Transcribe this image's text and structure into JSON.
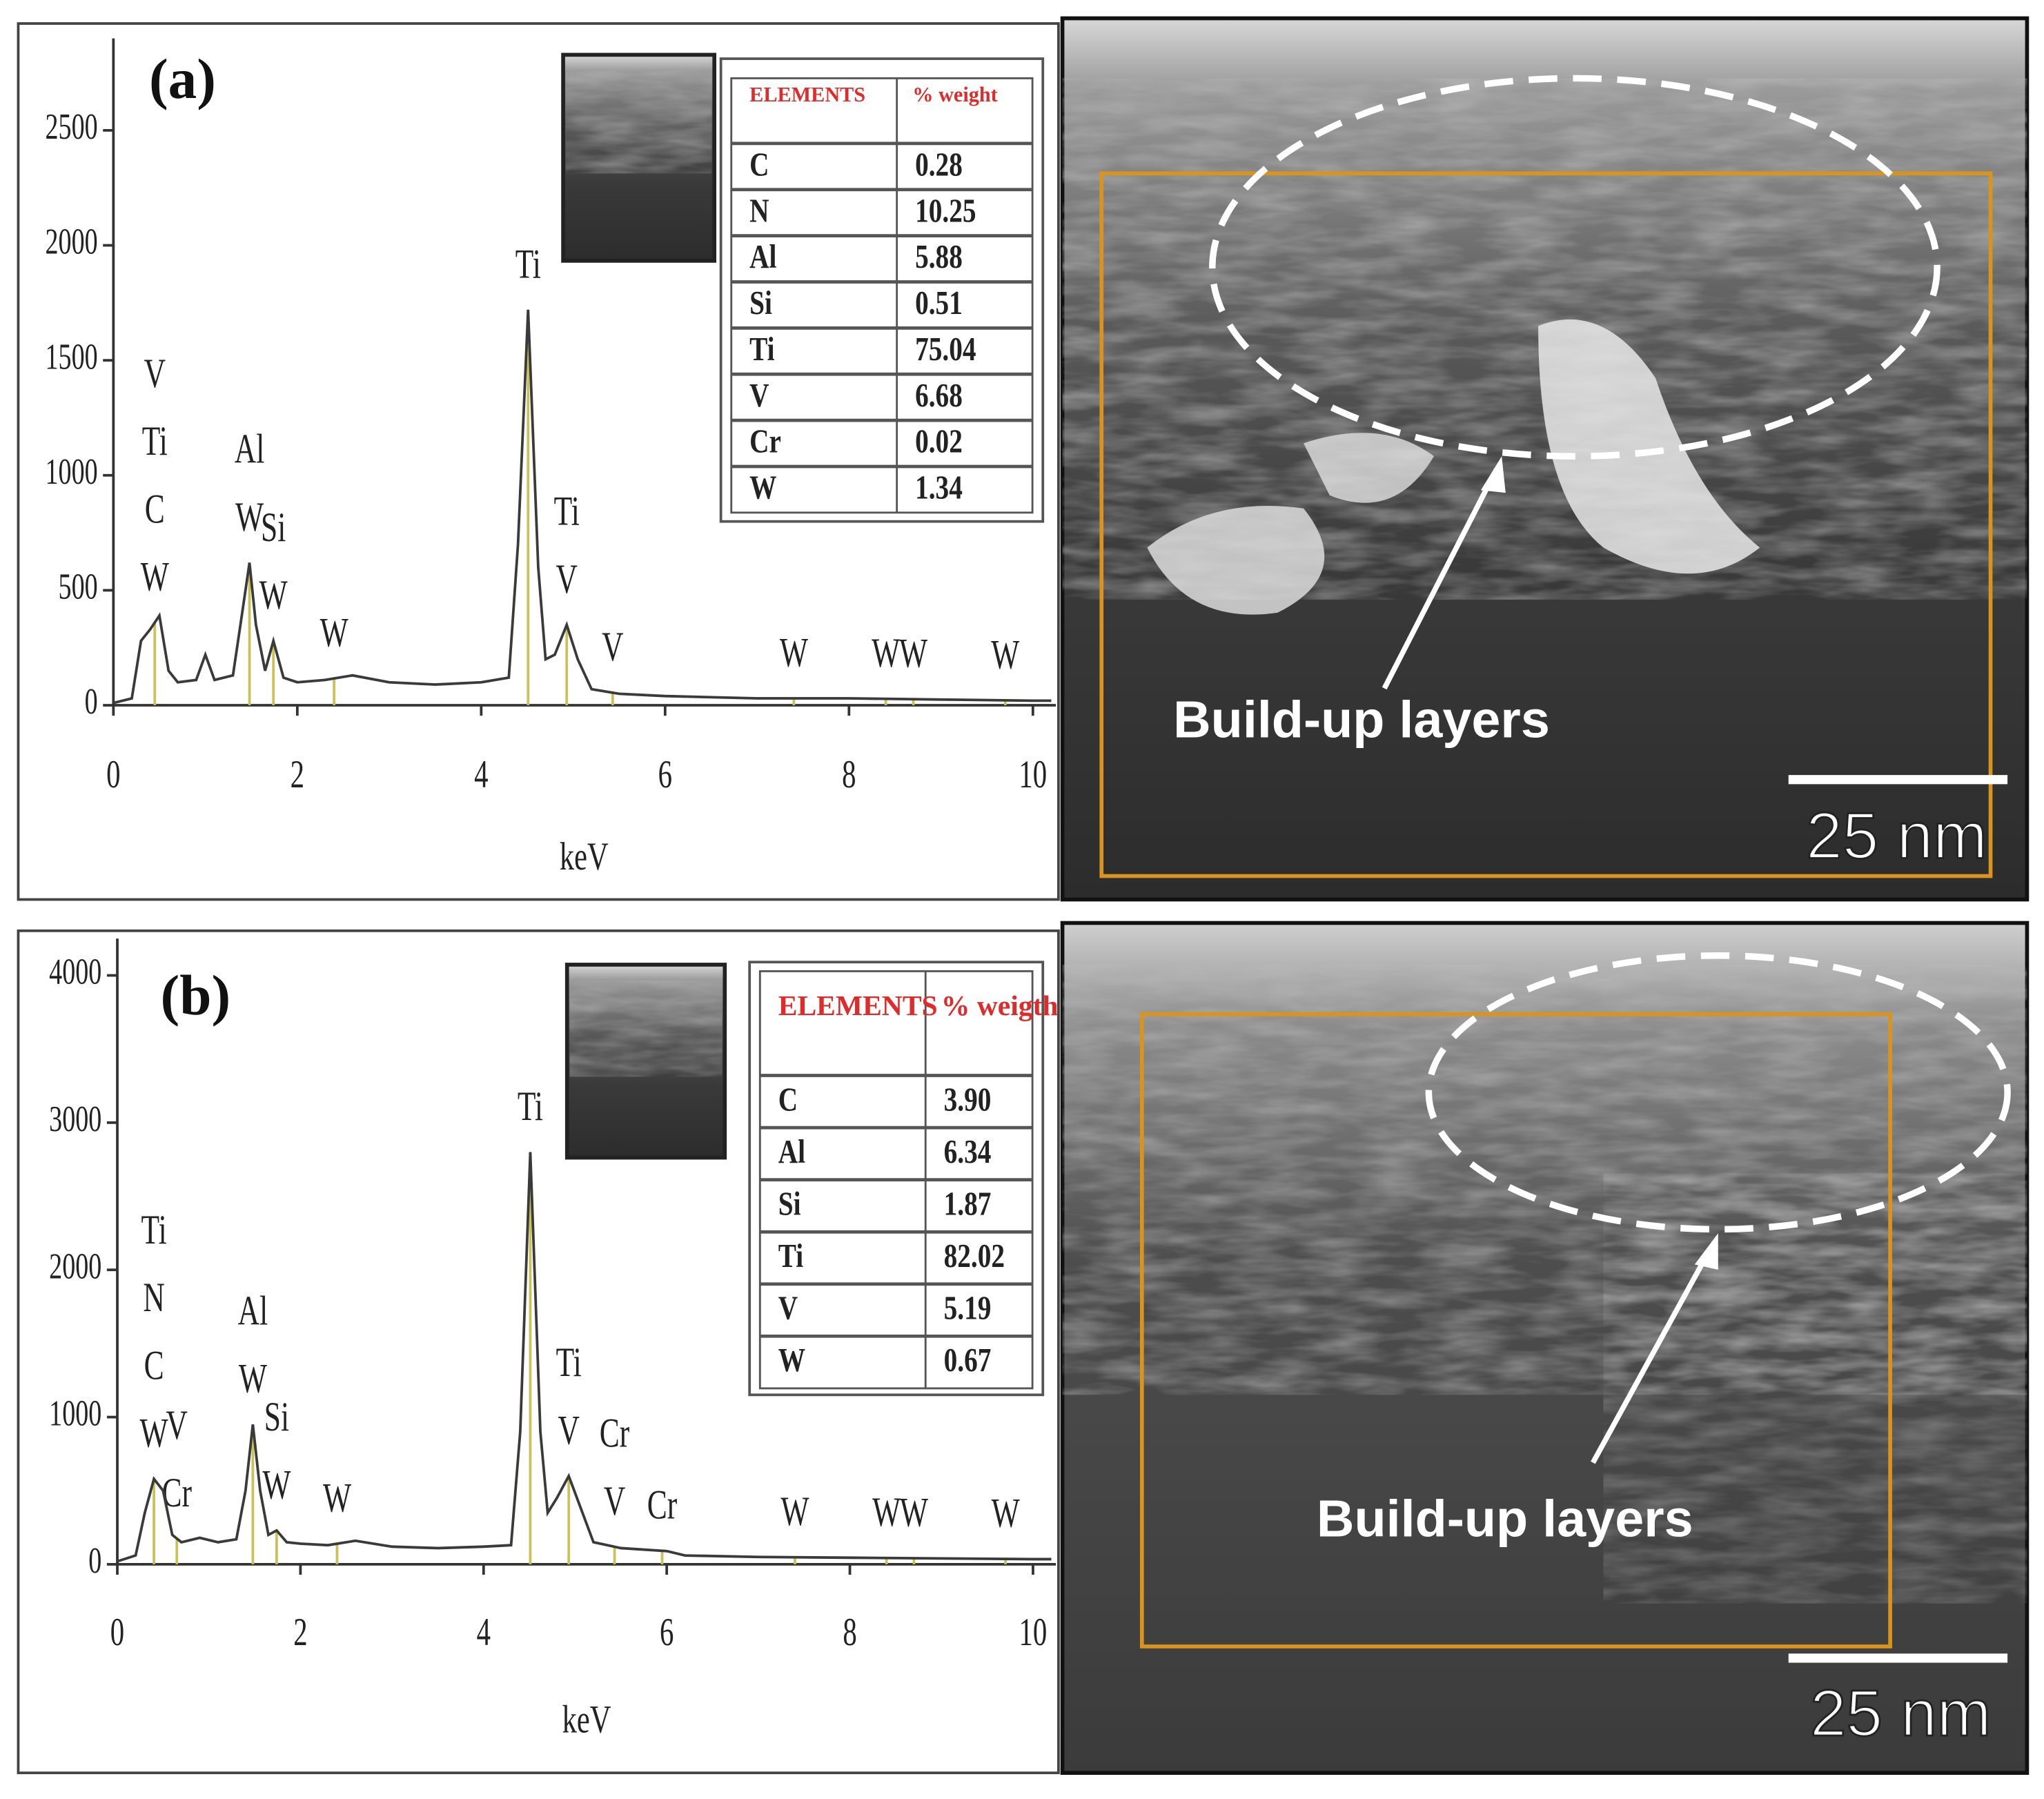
{
  "chart_data": [
    {
      "type": "line",
      "panel_label": "(a)",
      "x_label": "keV",
      "color": "#3a3a3a",
      "peak_line_color": "#c9c25a",
      "x": [
        0,
        0.2,
        0.3,
        0.4,
        0.5,
        0.6,
        0.7,
        0.9,
        1.0,
        1.1,
        1.3,
        1.4,
        1.48,
        1.55,
        1.65,
        1.74,
        1.85,
        2.0,
        2.3,
        2.6,
        3.0,
        3.5,
        4.0,
        4.3,
        4.4,
        4.51,
        4.62,
        4.7,
        4.8,
        4.93,
        5.05,
        5.2,
        5.5,
        6,
        7,
        8,
        9,
        10,
        10.2
      ],
      "values": [
        10,
        30,
        280,
        330,
        390,
        150,
        100,
        110,
        220,
        110,
        130,
        400,
        620,
        350,
        150,
        280,
        120,
        100,
        110,
        130,
        100,
        90,
        100,
        120,
        700,
        1720,
        600,
        200,
        220,
        350,
        200,
        70,
        50,
        40,
        30,
        30,
        25,
        20,
        20
      ],
      "xlim": [
        0,
        10.25
      ],
      "xticks": [
        0,
        2,
        4,
        6,
        8,
        10
      ],
      "ylim": [
        0,
        2900
      ],
      "yticks": [
        0,
        500,
        1000,
        1500,
        2000,
        2500
      ],
      "annotations": [
        {
          "x": 0.45,
          "labels": [
            "W",
            "C",
            "Ti",
            "V"
          ]
        },
        {
          "x": 1.48,
          "labels": [
            "W",
            "Al"
          ]
        },
        {
          "x": 1.74,
          "labels": [
            "W",
            "Si"
          ]
        },
        {
          "x": 2.4,
          "labels": [
            "W"
          ]
        },
        {
          "x": 4.51,
          "labels": [
            "Ti"
          ]
        },
        {
          "x": 4.93,
          "labels": [
            "V",
            "Ti"
          ]
        },
        {
          "x": 5.43,
          "labels": [
            "V"
          ]
        },
        {
          "x": 7.4,
          "labels": [
            "W"
          ]
        },
        {
          "x": 8.4,
          "labels": [
            "W"
          ]
        },
        {
          "x": 8.7,
          "labels": [
            "W"
          ]
        },
        {
          "x": 9.7,
          "labels": [
            "W"
          ]
        }
      ],
      "table": {
        "header": [
          "ELEMENTS",
          "% weight"
        ],
        "rows": [
          [
            "C",
            "0.28"
          ],
          [
            "N",
            "10.25"
          ],
          [
            "Al",
            "5.88"
          ],
          [
            "Si",
            "0.51"
          ],
          [
            "Ti",
            "75.04"
          ],
          [
            "V",
            "6.68"
          ],
          [
            "Cr",
            "0.02"
          ],
          [
            "W",
            "1.34"
          ]
        ]
      }
    },
    {
      "type": "line",
      "panel_label": "(b)",
      "x_label": "keV",
      "color": "#3a3a3a",
      "peak_line_color": "#c9c25a",
      "x": [
        0,
        0.2,
        0.3,
        0.4,
        0.5,
        0.6,
        0.7,
        0.9,
        1.1,
        1.3,
        1.4,
        1.48,
        1.56,
        1.65,
        1.74,
        1.85,
        2.0,
        2.3,
        2.6,
        3.0,
        3.5,
        4.0,
        4.3,
        4.4,
        4.51,
        4.62,
        4.7,
        4.8,
        4.93,
        5.05,
        5.2,
        5.5,
        6,
        6.2,
        7,
        8,
        9,
        10,
        10.2
      ],
      "values": [
        20,
        60,
        350,
        580,
        500,
        200,
        150,
        180,
        150,
        170,
        500,
        950,
        500,
        200,
        230,
        150,
        140,
        130,
        160,
        120,
        110,
        120,
        130,
        900,
        2800,
        900,
        350,
        450,
        600,
        400,
        150,
        110,
        90,
        60,
        50,
        45,
        40,
        35,
        35
      ],
      "xlim": [
        0,
        10.25
      ],
      "xticks": [
        0,
        2,
        4,
        6,
        8,
        10
      ],
      "ylim": [
        0,
        4250
      ],
      "yticks": [
        0,
        1000,
        2000,
        3000,
        4000
      ],
      "annotations": [
        {
          "x": 0.4,
          "labels": [
            "W",
            "C",
            "N",
            "Ti"
          ]
        },
        {
          "x": 0.65,
          "labels": [
            "Cr",
            "V"
          ]
        },
        {
          "x": 1.48,
          "labels": [
            "W",
            "Al"
          ]
        },
        {
          "x": 1.74,
          "labels": [
            "W",
            "Si"
          ]
        },
        {
          "x": 2.4,
          "labels": [
            "W"
          ]
        },
        {
          "x": 4.51,
          "labels": [
            "Ti"
          ]
        },
        {
          "x": 4.93,
          "labels": [
            "V",
            "Ti"
          ]
        },
        {
          "x": 5.43,
          "labels": [
            "V",
            "Cr"
          ]
        },
        {
          "x": 5.95,
          "labels": [
            "Cr"
          ]
        },
        {
          "x": 7.4,
          "labels": [
            "W"
          ]
        },
        {
          "x": 8.4,
          "labels": [
            "W"
          ]
        },
        {
          "x": 8.7,
          "labels": [
            "W"
          ]
        },
        {
          "x": 9.7,
          "labels": [
            "W"
          ]
        }
      ],
      "table": {
        "header": [
          "ELEMENTS",
          "% weigth"
        ],
        "rows": [
          [
            "C",
            "3.90"
          ],
          [
            "Al",
            "6.34"
          ],
          [
            "Si",
            "1.87"
          ],
          [
            "Ti",
            "82.02"
          ],
          [
            "V",
            "5.19"
          ],
          [
            "W",
            "0.67"
          ]
        ]
      }
    }
  ],
  "images": [
    {
      "label": "Build-up layers",
      "scale_bar": "25 nm"
    },
    {
      "label": "Build-up layers",
      "scale_bar": "25 nm"
    }
  ]
}
